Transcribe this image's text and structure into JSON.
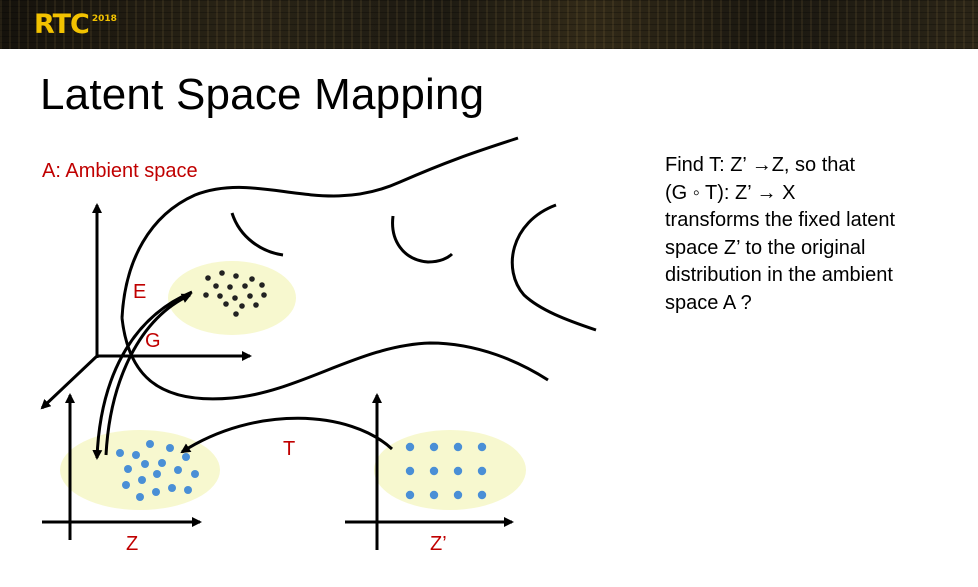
{
  "header": {
    "logo_text": "RTC",
    "logo_year": "2018"
  },
  "title": "Latent Space Mapping",
  "diagram": {
    "ambient_label": "A: Ambient space",
    "encoder_label": "E",
    "generator_label": "G",
    "transform_label": "T",
    "z_label": "Z",
    "z_prime_label": "Z’"
  },
  "description": {
    "lines": [
      "Find T: Z’ →Z, so that",
      "(G ◦ T): Z’ → X",
      "transforms the fixed latent",
      "space Z’ to the original",
      "distribution in the ambient",
      "space A ?"
    ]
  },
  "colors": {
    "accent_red": "#c00000",
    "dot_blue": "#4a8fd6",
    "blob_fill": "#f7f8cf",
    "logo_yellow": "#f2c200"
  }
}
